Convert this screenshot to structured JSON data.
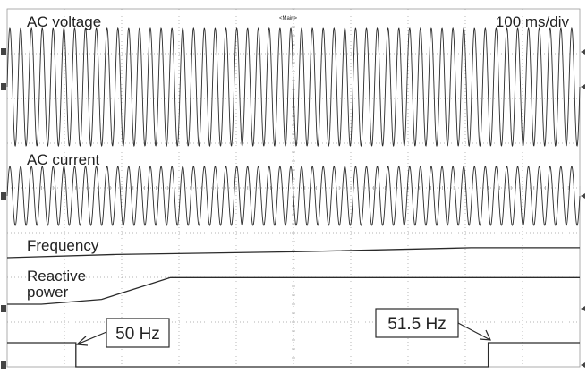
{
  "scope": {
    "header_marker": "<Main>",
    "timebase": "100 ms/div",
    "grid": {
      "h_divisions": 10,
      "v_divisions": 8,
      "style": "dotted"
    }
  },
  "chart_data": {
    "type": "line",
    "title": "",
    "xlabel": "",
    "ylabel": "",
    "x_unit": "ms",
    "x_range": [
      0,
      1000
    ],
    "channels": [
      {
        "label": "AC voltage",
        "kind": "sine",
        "description_hint": "constant amplitude sinusoid",
        "cycles_visible": 53,
        "amplitude_divs": 1.5
      },
      {
        "label": "AC current",
        "kind": "sine",
        "cycles_visible": 53,
        "amplitude_divs": 0.75
      },
      {
        "label": "Frequency",
        "kind": "steps",
        "x": [
          0,
          190,
          500,
          810,
          1000
        ],
        "y": [
          0,
          0.12,
          0.22,
          0.37,
          0.37
        ]
      },
      {
        "label_lines": [
          "Reactive",
          "power"
        ],
        "kind": "ramp",
        "x": [
          0,
          60,
          165,
          285,
          1000
        ],
        "y": [
          0,
          0,
          0.2,
          1.1,
          1.1
        ]
      },
      {
        "label": "",
        "kind": "pulse",
        "x": [
          0,
          120,
          120,
          840,
          840,
          1000
        ],
        "y": [
          1,
          1,
          0,
          0,
          1,
          1
        ]
      }
    ],
    "annotations": [
      {
        "text": "50 Hz",
        "points_to_ms": 120
      },
      {
        "text": "51.5 Hz",
        "points_to_ms": 840
      }
    ]
  },
  "colors": {
    "trace": "#2a2a2a",
    "grid": "#9a9a9a",
    "text": "#222222",
    "background": "#ffffff"
  }
}
